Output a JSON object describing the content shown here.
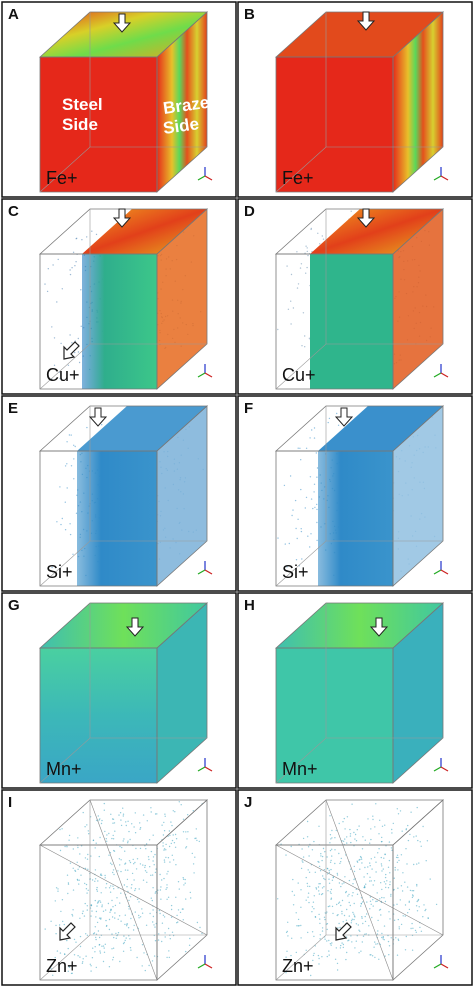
{
  "panels": [
    {
      "letter": "A",
      "ion": "Fe+"
    },
    {
      "letter": "B",
      "ion": "Fe+"
    },
    {
      "letter": "C",
      "ion": "Cu+"
    },
    {
      "letter": "D",
      "ion": "Cu+"
    },
    {
      "letter": "E",
      "ion": "Si+"
    },
    {
      "letter": "F",
      "ion": "Si+"
    },
    {
      "letter": "G",
      "ion": "Mn+"
    },
    {
      "letter": "H",
      "ion": "Mn+"
    },
    {
      "letter": "I",
      "ion": "Zn+"
    },
    {
      "letter": "J",
      "ion": "Zn+"
    }
  ],
  "annotations": {
    "steel_side": [
      "Steel",
      "Side"
    ],
    "braze_side": [
      "Braze",
      "Side"
    ]
  }
}
